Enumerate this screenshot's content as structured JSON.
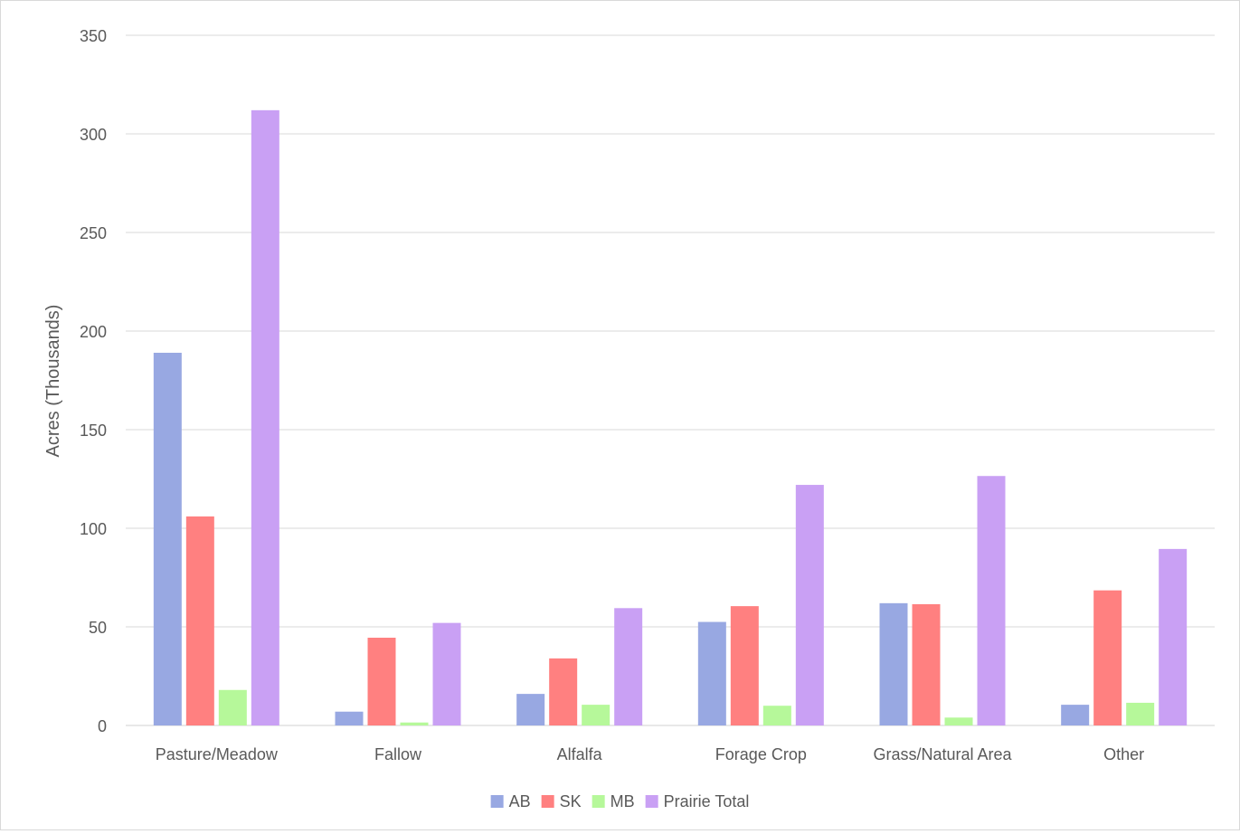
{
  "chart_data": {
    "type": "bar",
    "title": "",
    "xlabel": "",
    "ylabel": "Acres (Thousands)",
    "ylim": [
      0,
      350
    ],
    "yticks": [
      0,
      50,
      100,
      150,
      200,
      250,
      300,
      350
    ],
    "grid": true,
    "legend_position": "bottom",
    "categories": [
      "Pasture/Meadow",
      "Fallow",
      "Alfalfa",
      "Forage Crop",
      "Grass/Natural Area",
      "Other"
    ],
    "series": [
      {
        "name": "AB",
        "color": "#98a8e2",
        "values": [
          189,
          7,
          16,
          52.5,
          62,
          10.5
        ]
      },
      {
        "name": "SK",
        "color": "#ff8080",
        "values": [
          106,
          44.5,
          34,
          60.5,
          61.5,
          68.5
        ]
      },
      {
        "name": "MB",
        "color": "#b6f89a",
        "values": [
          18,
          1.5,
          10.5,
          10,
          4,
          11.5
        ]
      },
      {
        "name": "Prairie Total",
        "color": "#c9a0f4",
        "values": [
          312,
          52,
          59.5,
          122,
          126.5,
          89.5
        ]
      }
    ]
  }
}
